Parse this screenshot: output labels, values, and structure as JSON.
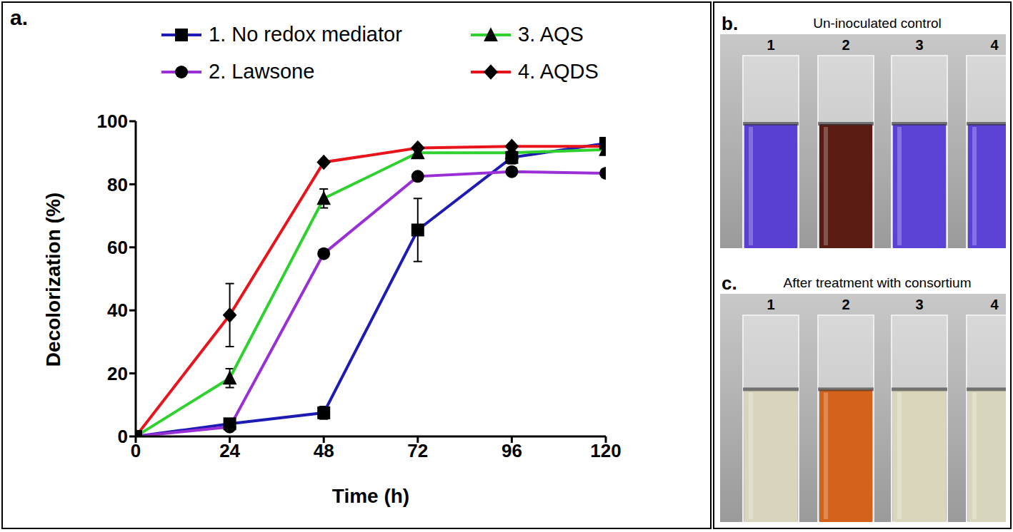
{
  "chart_data": {
    "type": "line",
    "annotations": [
      "a."
    ],
    "x_label": "Time (h)",
    "y_label": "Decolorization (%)",
    "x": [
      0,
      24,
      48,
      72,
      96,
      120
    ],
    "xlim": [
      0,
      120
    ],
    "xticks": [
      0,
      24,
      48,
      72,
      96,
      120
    ],
    "ylim": [
      0,
      100
    ],
    "yticks": [
      0,
      20,
      40,
      60,
      80,
      100
    ],
    "grid": false,
    "legend": "top",
    "series": [
      {
        "name": "1. No redox mediator",
        "color": "#1c1cb4",
        "marker": "square",
        "values": [
          0,
          4,
          7.5,
          65.5,
          88.5,
          93
        ],
        "errors": [
          null,
          null,
          2,
          10,
          2,
          null
        ]
      },
      {
        "name": "2. Lawsone",
        "color": "#9a2fd6",
        "marker": "circle",
        "values": [
          0,
          3,
          58,
          82.5,
          84,
          83.5
        ],
        "errors": [
          null,
          null,
          null,
          null,
          null,
          null
        ]
      },
      {
        "name": "3. AQS",
        "color": "#2fd12f",
        "marker": "triangle",
        "values": [
          0,
          18.5,
          75.5,
          90,
          90,
          91
        ],
        "errors": [
          null,
          3,
          3,
          null,
          null,
          null
        ]
      },
      {
        "name": "4. AQDS",
        "color": "#e8141c",
        "marker": "diamond",
        "values": [
          0,
          38.5,
          87,
          91.5,
          92,
          92
        ],
        "errors": [
          null,
          10,
          null,
          null,
          null,
          null
        ]
      }
    ]
  },
  "photos": [
    {
      "label": "b.",
      "title": "Un-inoculated control",
      "tube_labels": [
        "1",
        "2",
        "3",
        "4"
      ],
      "colors": [
        "#5b3fd2",
        "#5a1c12",
        "#5c42d4",
        "#5c42d4"
      ]
    },
    {
      "label": "c.",
      "title": "After treatment with consortium",
      "tube_labels": [
        "1",
        "2",
        "3",
        "4"
      ],
      "colors": [
        "#d9d5bc",
        "#d4621c",
        "#dad6bc",
        "#d8d5bd"
      ]
    }
  ]
}
